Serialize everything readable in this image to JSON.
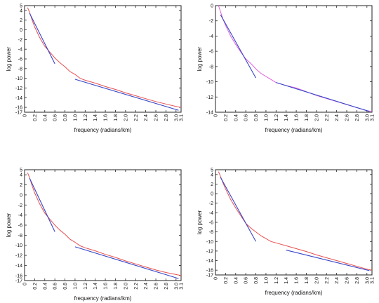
{
  "chart_data": [
    {
      "type": "line",
      "xlabel": "frequency (radians/km)",
      "ylabel": "log power",
      "xlim": [
        0,
        3.1
      ],
      "ylim": [
        -17,
        5
      ],
      "xticks": [
        "0",
        "0.2",
        "0.4",
        "0.6",
        "0.8",
        "1.0",
        "1.2",
        "1.4",
        "1.6",
        "1.8",
        "2.0",
        "2.2",
        "2.4",
        "2.6",
        "2.8",
        "3.0",
        "3.1"
      ],
      "yticks": [
        "5",
        "4",
        "2",
        "0",
        "-2",
        "-4",
        "-6",
        "-8",
        "-10",
        "-12",
        "-14",
        "-16",
        "-17"
      ],
      "spectrum_color": "#e85050",
      "fit_color": "#3545c8",
      "spectrum": [
        [
          0.06,
          4.6
        ],
        [
          0.1,
          3.6
        ],
        [
          0.15,
          2.0
        ],
        [
          0.2,
          0.6
        ],
        [
          0.3,
          -1.6
        ],
        [
          0.4,
          -3.4
        ],
        [
          0.5,
          -4.6
        ],
        [
          0.6,
          -5.8
        ],
        [
          0.7,
          -6.8
        ],
        [
          0.8,
          -7.6
        ],
        [
          0.9,
          -8.6
        ],
        [
          1.0,
          -9.2
        ],
        [
          1.1,
          -10.0
        ],
        [
          1.2,
          -10.4
        ],
        [
          1.4,
          -11.0
        ],
        [
          1.6,
          -11.7
        ],
        [
          1.8,
          -12.3
        ],
        [
          2.0,
          -13.0
        ],
        [
          2.2,
          -13.6
        ],
        [
          2.4,
          -14.2
        ],
        [
          2.6,
          -14.8
        ],
        [
          2.8,
          -15.3
        ],
        [
          3.0,
          -15.8
        ],
        [
          3.1,
          -16.0
        ]
      ],
      "fits": [
        {
          "x": [
            0.1,
            0.6
          ],
          "y": [
            3.4,
            -7.0
          ]
        },
        {
          "x": [
            1.0,
            3.05
          ],
          "y": [
            -10.2,
            -16.6
          ]
        }
      ]
    },
    {
      "type": "line",
      "xlabel": "frequency (radians/km)",
      "ylabel": "log power",
      "xlim": [
        0,
        3.1
      ],
      "ylim": [
        -14,
        0
      ],
      "xticks": [
        "0",
        "0.2",
        "0.4",
        "0.6",
        "0.8",
        "1.0",
        "1.2",
        "1.4",
        "1.6",
        "1.8",
        "2.0",
        "2.2",
        "2.4",
        "2.6",
        "2.8",
        "3.0",
        "3.1"
      ],
      "yticks": [
        "0",
        "-2",
        "-4",
        "-6",
        "-8",
        "-10",
        "-12",
        "-14"
      ],
      "spectrum_color": "#e060e0",
      "fit_color": "#3545c8",
      "spectrum": [
        [
          0.06,
          0.0
        ],
        [
          0.1,
          -0.8
        ],
        [
          0.15,
          -1.8
        ],
        [
          0.2,
          -2.6
        ],
        [
          0.3,
          -4.0
        ],
        [
          0.4,
          -5.1
        ],
        [
          0.5,
          -6.1
        ],
        [
          0.6,
          -7.0
        ],
        [
          0.7,
          -7.6
        ],
        [
          0.8,
          -8.3
        ],
        [
          0.9,
          -8.9
        ],
        [
          1.0,
          -9.3
        ],
        [
          1.1,
          -9.7
        ],
        [
          1.2,
          -10.1
        ],
        [
          1.4,
          -10.5
        ],
        [
          1.6,
          -10.8
        ],
        [
          1.8,
          -11.3
        ],
        [
          2.0,
          -11.8
        ],
        [
          2.2,
          -12.2
        ],
        [
          2.4,
          -12.6
        ],
        [
          2.6,
          -13.0
        ],
        [
          2.8,
          -13.4
        ],
        [
          3.0,
          -13.8
        ],
        [
          3.1,
          -13.9
        ]
      ],
      "fits": [
        {
          "x": [
            0.1,
            0.8
          ],
          "y": [
            -1.2,
            -9.5
          ]
        },
        {
          "x": [
            1.2,
            3.05
          ],
          "y": [
            -10.1,
            -13.9
          ]
        }
      ]
    },
    {
      "type": "line",
      "xlabel": "frequency (radians/km)",
      "ylabel": "log power",
      "xlim": [
        0,
        3.1
      ],
      "ylim": [
        -17,
        5
      ],
      "xticks": [
        "0",
        "0.2",
        "0.4",
        "0.6",
        "0.8",
        "1.0",
        "1.2",
        "1.4",
        "1.6",
        "1.8",
        "2.0",
        "2.2",
        "2.4",
        "2.6",
        "2.8",
        "3.0",
        "3.1"
      ],
      "yticks": [
        "5",
        "4",
        "2",
        "0",
        "-2",
        "-4",
        "-6",
        "-8",
        "-10",
        "-12",
        "-14",
        "-16",
        "-17"
      ],
      "spectrum_color": "#e85050",
      "fit_color": "#3545c8",
      "spectrum": [
        [
          0.06,
          4.4
        ],
        [
          0.1,
          3.4
        ],
        [
          0.15,
          1.8
        ],
        [
          0.2,
          0.4
        ],
        [
          0.3,
          -1.8
        ],
        [
          0.4,
          -3.6
        ],
        [
          0.5,
          -4.8
        ],
        [
          0.6,
          -6.0
        ],
        [
          0.7,
          -7.0
        ],
        [
          0.8,
          -7.8
        ],
        [
          0.9,
          -8.8
        ],
        [
          1.0,
          -9.4
        ],
        [
          1.1,
          -10.1
        ],
        [
          1.2,
          -10.5
        ],
        [
          1.4,
          -11.1
        ],
        [
          1.6,
          -11.8
        ],
        [
          1.8,
          -12.4
        ],
        [
          2.0,
          -13.1
        ],
        [
          2.2,
          -13.7
        ],
        [
          2.4,
          -14.3
        ],
        [
          2.6,
          -14.9
        ],
        [
          2.8,
          -15.4
        ],
        [
          3.0,
          -15.8
        ],
        [
          3.1,
          -16.0
        ]
      ],
      "fits": [
        {
          "x": [
            0.1,
            0.6
          ],
          "y": [
            3.3,
            -7.3
          ]
        },
        {
          "x": [
            1.0,
            3.05
          ],
          "y": [
            -10.3,
            -16.6
          ]
        }
      ]
    },
    {
      "type": "line",
      "xlabel": "frequency (radians/km)",
      "ylabel": "log power",
      "xlim": [
        0,
        3.1
      ],
      "ylim": [
        -17,
        5
      ],
      "xticks": [
        "0",
        "0.2",
        "0.4",
        "0.6",
        "0.8",
        "1.0",
        "1.2",
        "1.4",
        "1.6",
        "1.8",
        "2.0",
        "2.2",
        "2.4",
        "2.6",
        "2.8",
        "3.0",
        "3.1"
      ],
      "yticks": [
        "5",
        "4",
        "2",
        "0",
        "-2",
        "-4",
        "-6",
        "-8",
        "-10",
        "-12",
        "-14",
        "-16",
        "-17"
      ],
      "spectrum_color": "#e85050",
      "fit_color": "#3545c8",
      "spectrum": [
        [
          0.06,
          4.6
        ],
        [
          0.1,
          3.6
        ],
        [
          0.15,
          2.2
        ],
        [
          0.2,
          1.0
        ],
        [
          0.3,
          -1.2
        ],
        [
          0.4,
          -3.0
        ],
        [
          0.5,
          -4.6
        ],
        [
          0.6,
          -6.2
        ],
        [
          0.7,
          -7.2
        ],
        [
          0.8,
          -8.0
        ],
        [
          0.9,
          -8.8
        ],
        [
          1.0,
          -9.4
        ],
        [
          1.1,
          -10.0
        ],
        [
          1.2,
          -10.3
        ],
        [
          1.4,
          -10.9
        ],
        [
          1.6,
          -11.5
        ],
        [
          1.8,
          -12.1
        ],
        [
          2.0,
          -12.8
        ],
        [
          2.2,
          -13.4
        ],
        [
          2.4,
          -14.0
        ],
        [
          2.6,
          -14.6
        ],
        [
          2.8,
          -15.2
        ],
        [
          3.0,
          -15.8
        ],
        [
          3.1,
          -16.0
        ]
      ],
      "fits": [
        {
          "x": [
            0.1,
            0.8
          ],
          "y": [
            3.4,
            -10.0
          ]
        },
        {
          "x": [
            1.4,
            3.05
          ],
          "y": [
            -11.8,
            -16.1
          ]
        }
      ]
    }
  ]
}
